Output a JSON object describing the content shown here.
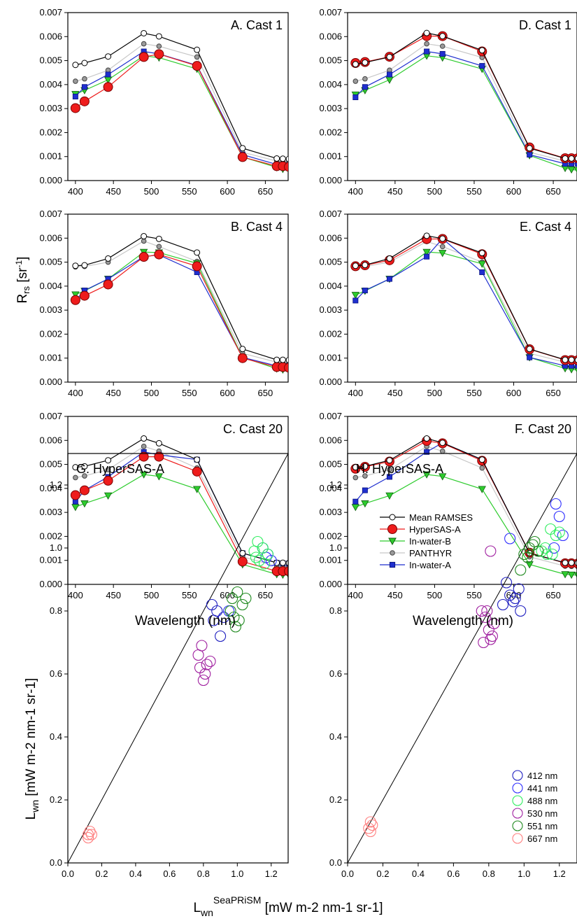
{
  "axis_labels": {
    "rrs_y_main": "R",
    "rrs_y_sub": "rs",
    "rrs_y_unit_a": " [sr",
    "rrs_y_unit_sup": "-1",
    "rrs_y_unit_b": "]",
    "wavelength_x": "Wavelength (nm)",
    "lwn_y_main": "L",
    "lwn_y_sub": "wn",
    "lwn_y_unit": " [mW m-2 nm-1 sr-1]",
    "lwn_x_main": "L",
    "lwn_x_sub": "wn",
    "lwn_x_sup": "SeaPRiSM",
    "lwn_x_unit": " [mW m-2 nm-1 sr-1]"
  },
  "spectral_panels": {
    "xlim": [
      390,
      680
    ],
    "ylim": [
      0,
      0.007
    ],
    "x_ticks": [
      "400",
      "450",
      "500",
      "550",
      "600",
      "650"
    ],
    "y_ticks": [
      "0.000",
      "0.001",
      "0.002",
      "0.003",
      "0.004",
      "0.005",
      "0.006",
      "0.007"
    ],
    "wavelengths": [
      400,
      412,
      443,
      490,
      510,
      560,
      620,
      665,
      673,
      681
    ],
    "legend_entries": [
      "Mean RAMSES",
      "HyperSAS-A",
      "In-water-B",
      "PANTHYR",
      "In-water-A"
    ]
  },
  "scatter_panels": {
    "xlim": [
      0,
      1.3
    ],
    "ylim": [
      0,
      1.3
    ],
    "ticks": [
      "0.0",
      "0.2",
      "0.4",
      "0.6",
      "0.8",
      "1.0",
      "1.2"
    ],
    "legend_entries": [
      "412 nm",
      "441 nm",
      "488 nm",
      "530 nm",
      "551 nm",
      "667 nm"
    ]
  },
  "colors": {
    "mean_ramses": "#ffffff",
    "hypersas": "#ee1c1c",
    "inwater_b": "#2ecc2e",
    "panthyr": "#9a9a9a",
    "inwater_a": "#1f2fcf",
    "c412": "#2020c0",
    "c441": "#3030ff",
    "c488": "#30ee60",
    "c530": "#a020a0",
    "c551": "#208a20",
    "c667": "#ff8080"
  },
  "chart_data": [
    {
      "type": "line",
      "title": "A. Cast 1",
      "x": [
        400,
        412,
        443,
        490,
        510,
        560,
        620,
        665,
        673,
        681
      ],
      "series": [
        {
          "name": "Mean RAMSES",
          "values": [
            0.00482,
            0.0049,
            0.00517,
            0.00614,
            0.00601,
            0.00545,
            0.00135,
            0.00092,
            0.00091,
            0.0009
          ]
        },
        {
          "name": "HyperSAS-A",
          "values": [
            0.00302,
            0.0033,
            0.0039,
            0.00515,
            0.00527,
            0.00478,
            0.00098,
            0.0006,
            0.0006,
            0.00057
          ]
        },
        {
          "name": "In-water-B",
          "values": [
            0.0036,
            0.00376,
            0.0042,
            0.0052,
            0.00512,
            0.00465,
            0.00098,
            0.00055,
            0.00048,
            0.00045
          ]
        },
        {
          "name": "PANTHYR",
          "values": [
            0.00414,
            0.00424,
            0.0046,
            0.0057,
            0.0056,
            0.00515,
            0.00118,
            0.00081,
            0.0008,
            0.00079
          ]
        },
        {
          "name": "In-water-A",
          "values": [
            0.0035,
            0.0039,
            0.00442,
            0.00538,
            0.00528,
            0.0048,
            0.00108,
            0.00067,
            0.00066,
            0.00065
          ]
        }
      ]
    },
    {
      "type": "line",
      "title": "D. Cast 1",
      "x": [
        400,
        412,
        443,
        490,
        510,
        560,
        620,
        665,
        673,
        681
      ],
      "series": [
        {
          "name": "Mean RAMSES",
          "values": [
            0.00485,
            0.00492,
            0.00515,
            0.00615,
            0.00602,
            0.00543,
            0.00135,
            0.00092,
            0.00092,
            0.00092
          ]
        },
        {
          "name": "HyperSAS-A",
          "values": [
            0.0049,
            0.00494,
            0.00516,
            0.00602,
            0.00602,
            0.00538,
            0.00138,
            0.00093,
            0.00093,
            0.00093
          ]
        },
        {
          "name": "In-water-B",
          "values": [
            0.00358,
            0.00376,
            0.0042,
            0.0052,
            0.00512,
            0.00465,
            0.00105,
            0.00052,
            0.00046,
            0.00043
          ]
        },
        {
          "name": "PANTHYR",
          "values": [
            0.00414,
            0.00424,
            0.0046,
            0.0057,
            0.0056,
            0.00513,
            0.00118,
            0.00081,
            0.0008,
            0.00079
          ]
        },
        {
          "name": "In-water-A",
          "values": [
            0.00347,
            0.0039,
            0.00442,
            0.00538,
            0.00528,
            0.00478,
            0.00108,
            0.0007,
            0.0007,
            0.0007
          ]
        }
      ]
    },
    {
      "type": "line",
      "title": "B. Cast 4",
      "x": [
        400,
        412,
        443,
        490,
        510,
        560,
        620,
        665,
        673,
        681
      ],
      "series": [
        {
          "name": "Mean RAMSES",
          "values": [
            0.00485,
            0.00487,
            0.00515,
            0.00608,
            0.00597,
            0.0054,
            0.00138,
            0.00093,
            0.00093,
            0.00092
          ]
        },
        {
          "name": "HyperSAS-A",
          "values": [
            0.00342,
            0.0036,
            0.00407,
            0.00522,
            0.00532,
            0.00483,
            0.001,
            0.00063,
            0.00063,
            0.0006
          ]
        },
        {
          "name": "In-water-B",
          "values": [
            0.00365,
            0.0038,
            0.0043,
            0.00542,
            0.0054,
            0.00495,
            0.00103,
            0.00056,
            0.00052,
            0.0005
          ]
        },
        {
          "name": "PANTHYR",
          "values": [
            0.0048,
            0.00482,
            0.005,
            0.00588,
            0.00565,
            0.00503,
            0.0012,
            0.00083,
            0.00082,
            0.0008
          ]
        },
        {
          "name": "In-water-A",
          "values": [
            0.0034,
            0.00382,
            0.0043,
            0.00523,
            0.0053,
            0.00458,
            0.00103,
            0.00068,
            0.00068,
            0.00068
          ]
        }
      ]
    },
    {
      "type": "line",
      "title": "E. Cast 4",
      "x": [
        400,
        412,
        443,
        490,
        510,
        560,
        620,
        665,
        673,
        681
      ],
      "series": [
        {
          "name": "Mean RAMSES",
          "values": [
            0.00485,
            0.00488,
            0.00515,
            0.0061,
            0.00598,
            0.00538,
            0.00138,
            0.00093,
            0.00093,
            0.00092
          ]
        },
        {
          "name": "HyperSAS-A",
          "values": [
            0.00483,
            0.00487,
            0.00508,
            0.00596,
            0.00597,
            0.00533,
            0.00137,
            0.00092,
            0.00092,
            0.00091
          ]
        },
        {
          "name": "In-water-B",
          "values": [
            0.00363,
            0.0038,
            0.0043,
            0.00542,
            0.00538,
            0.00493,
            0.00103,
            0.00057,
            0.00053,
            0.0005
          ]
        },
        {
          "name": "PANTHYR",
          "values": [
            0.0048,
            0.00482,
            0.005,
            0.00586,
            0.00565,
            0.005,
            0.0012,
            0.00083,
            0.00082,
            0.0008
          ]
        },
        {
          "name": "In-water-A",
          "values": [
            0.0034,
            0.00382,
            0.0043,
            0.00523,
            0.00598,
            0.00458,
            0.00103,
            0.00068,
            0.00068,
            0.00068
          ]
        }
      ]
    },
    {
      "type": "line",
      "title": "C. Cast 20",
      "x": [
        400,
        412,
        443,
        490,
        510,
        560,
        620,
        665,
        673,
        681
      ],
      "series": [
        {
          "name": "Mean RAMSES",
          "values": [
            0.00488,
            0.00492,
            0.00517,
            0.00608,
            0.00588,
            0.0052,
            0.0013,
            0.0009,
            0.0009,
            0.00089
          ]
        },
        {
          "name": "HyperSAS-A",
          "values": [
            0.00372,
            0.00392,
            0.00432,
            0.00532,
            0.00532,
            0.0047,
            0.00095,
            0.00055,
            0.00055,
            0.00055
          ]
        },
        {
          "name": "In-water-B",
          "values": [
            0.00322,
            0.00337,
            0.0037,
            0.00458,
            0.0045,
            0.00397,
            0.00083,
            0.00042,
            0.0004,
            0.00038
          ]
        },
        {
          "name": "PANTHYR",
          "values": [
            0.00445,
            0.00452,
            0.00478,
            0.00575,
            0.00555,
            0.00485,
            0.00115,
            0.00076,
            0.00075,
            0.00074
          ]
        },
        {
          "name": "In-water-A",
          "values": [
            0.00345,
            0.00392,
            0.00448,
            0.00552,
            0.0054,
            0.0052,
            0.0013,
            0.0009,
            0.00088,
            0.00087
          ]
        }
      ]
    },
    {
      "type": "line",
      "title": "F. Cast 20",
      "x": [
        400,
        412,
        443,
        490,
        510,
        560,
        620,
        665,
        673,
        681
      ],
      "series": [
        {
          "name": "Mean RAMSES",
          "values": [
            0.00488,
            0.00492,
            0.00517,
            0.00608,
            0.0059,
            0.0052,
            0.0013,
            0.0009,
            0.0009,
            0.00089
          ]
        },
        {
          "name": "HyperSAS-A",
          "values": [
            0.00482,
            0.0049,
            0.00512,
            0.00598,
            0.00588,
            0.00515,
            0.00132,
            0.00088,
            0.00088,
            0.00087
          ]
        },
        {
          "name": "In-water-B",
          "values": [
            0.00322,
            0.00337,
            0.0037,
            0.00458,
            0.0045,
            0.00397,
            0.00083,
            0.00042,
            0.0004,
            0.00038
          ]
        },
        {
          "name": "PANTHYR",
          "values": [
            0.00445,
            0.00452,
            0.00478,
            0.00575,
            0.00555,
            0.00485,
            0.00115,
            0.00076,
            0.00075,
            0.00074
          ]
        },
        {
          "name": "In-water-A",
          "values": [
            0.00345,
            0.00392,
            0.00448,
            0.00552,
            0.0059,
            0.0052,
            0.0013,
            0.0009,
            0.00088,
            0.00087
          ]
        }
      ]
    },
    {
      "type": "scatter",
      "title": "G. HyperSAS-A",
      "xlim": [
        0,
        1.3
      ],
      "ylim": [
        0,
        1.3
      ],
      "series": [
        {
          "name": "412 nm",
          "x": [
            0.85,
            0.88,
            0.92,
            0.9,
            0.86
          ],
          "y": [
            0.82,
            0.8,
            0.78,
            0.72,
            0.77
          ]
        },
        {
          "name": "441 nm",
          "x": [
            1.15,
            1.18,
            1.2,
            1.17,
            0.95
          ],
          "y": [
            1.0,
            0.98,
            0.96,
            0.97,
            0.8
          ]
        },
        {
          "name": "488 nm",
          "x": [
            1.1,
            1.12,
            1.15,
            1.18,
            1.13,
            1.16,
            1.11
          ],
          "y": [
            0.99,
            1.02,
            1.0,
            0.98,
            0.96,
            0.95,
            0.97
          ]
        },
        {
          "name": "530 nm",
          "x": [
            0.77,
            0.79,
            0.82,
            0.8,
            0.84,
            0.78,
            0.81
          ],
          "y": [
            0.66,
            0.69,
            0.63,
            0.58,
            0.64,
            0.62,
            0.6
          ]
        },
        {
          "name": "551 nm",
          "x": [
            0.97,
            1.0,
            1.03,
            0.98,
            1.05,
            0.99,
            1.01,
            0.96
          ],
          "y": [
            0.84,
            0.86,
            0.82,
            0.78,
            0.84,
            0.75,
            0.77,
            0.8
          ]
        },
        {
          "name": "667 nm",
          "x": [
            0.12,
            0.13,
            0.14,
            0.12
          ],
          "y": [
            0.09,
            0.1,
            0.09,
            0.08
          ]
        }
      ]
    },
    {
      "type": "scatter",
      "title": "H. HyperSAS-A",
      "xlim": [
        0,
        1.3
      ],
      "ylim": [
        0,
        1.3
      ],
      "series": [
        {
          "name": "412 nm",
          "x": [
            0.88,
            0.92,
            0.95,
            0.98,
            0.94,
            0.97,
            0.9
          ],
          "y": [
            0.82,
            0.85,
            0.84,
            0.8,
            0.83,
            0.87,
            0.89
          ]
        },
        {
          "name": "441 nm",
          "x": [
            1.18,
            1.2,
            1.22,
            0.92,
            1.17
          ],
          "y": [
            1.14,
            1.1,
            1.04,
            1.03,
            1.0
          ]
        },
        {
          "name": "488 nm",
          "x": [
            1.1,
            1.13,
            1.15,
            1.18,
            1.12,
            1.2,
            1.16
          ],
          "y": [
            0.99,
            0.98,
            1.06,
            1.04,
            1.0,
            1.05,
            0.98
          ]
        },
        {
          "name": "530 nm",
          "x": [
            0.77,
            0.8,
            0.78,
            0.82,
            0.79,
            0.81,
            0.83,
            0.76,
            0.81
          ],
          "y": [
            0.7,
            0.74,
            0.78,
            0.72,
            0.8,
            0.71,
            0.76,
            0.8,
            0.99
          ]
        },
        {
          "name": "551 nm",
          "x": [
            1.0,
            1.03,
            1.05,
            1.08,
            1.02,
            0.98,
            1.06
          ],
          "y": [
            0.98,
            1.0,
            1.01,
            0.99,
            0.97,
            0.93,
            1.02
          ]
        },
        {
          "name": "667 nm",
          "x": [
            0.12,
            0.13,
            0.14,
            0.13
          ],
          "y": [
            0.11,
            0.13,
            0.12,
            0.1
          ]
        }
      ]
    }
  ]
}
